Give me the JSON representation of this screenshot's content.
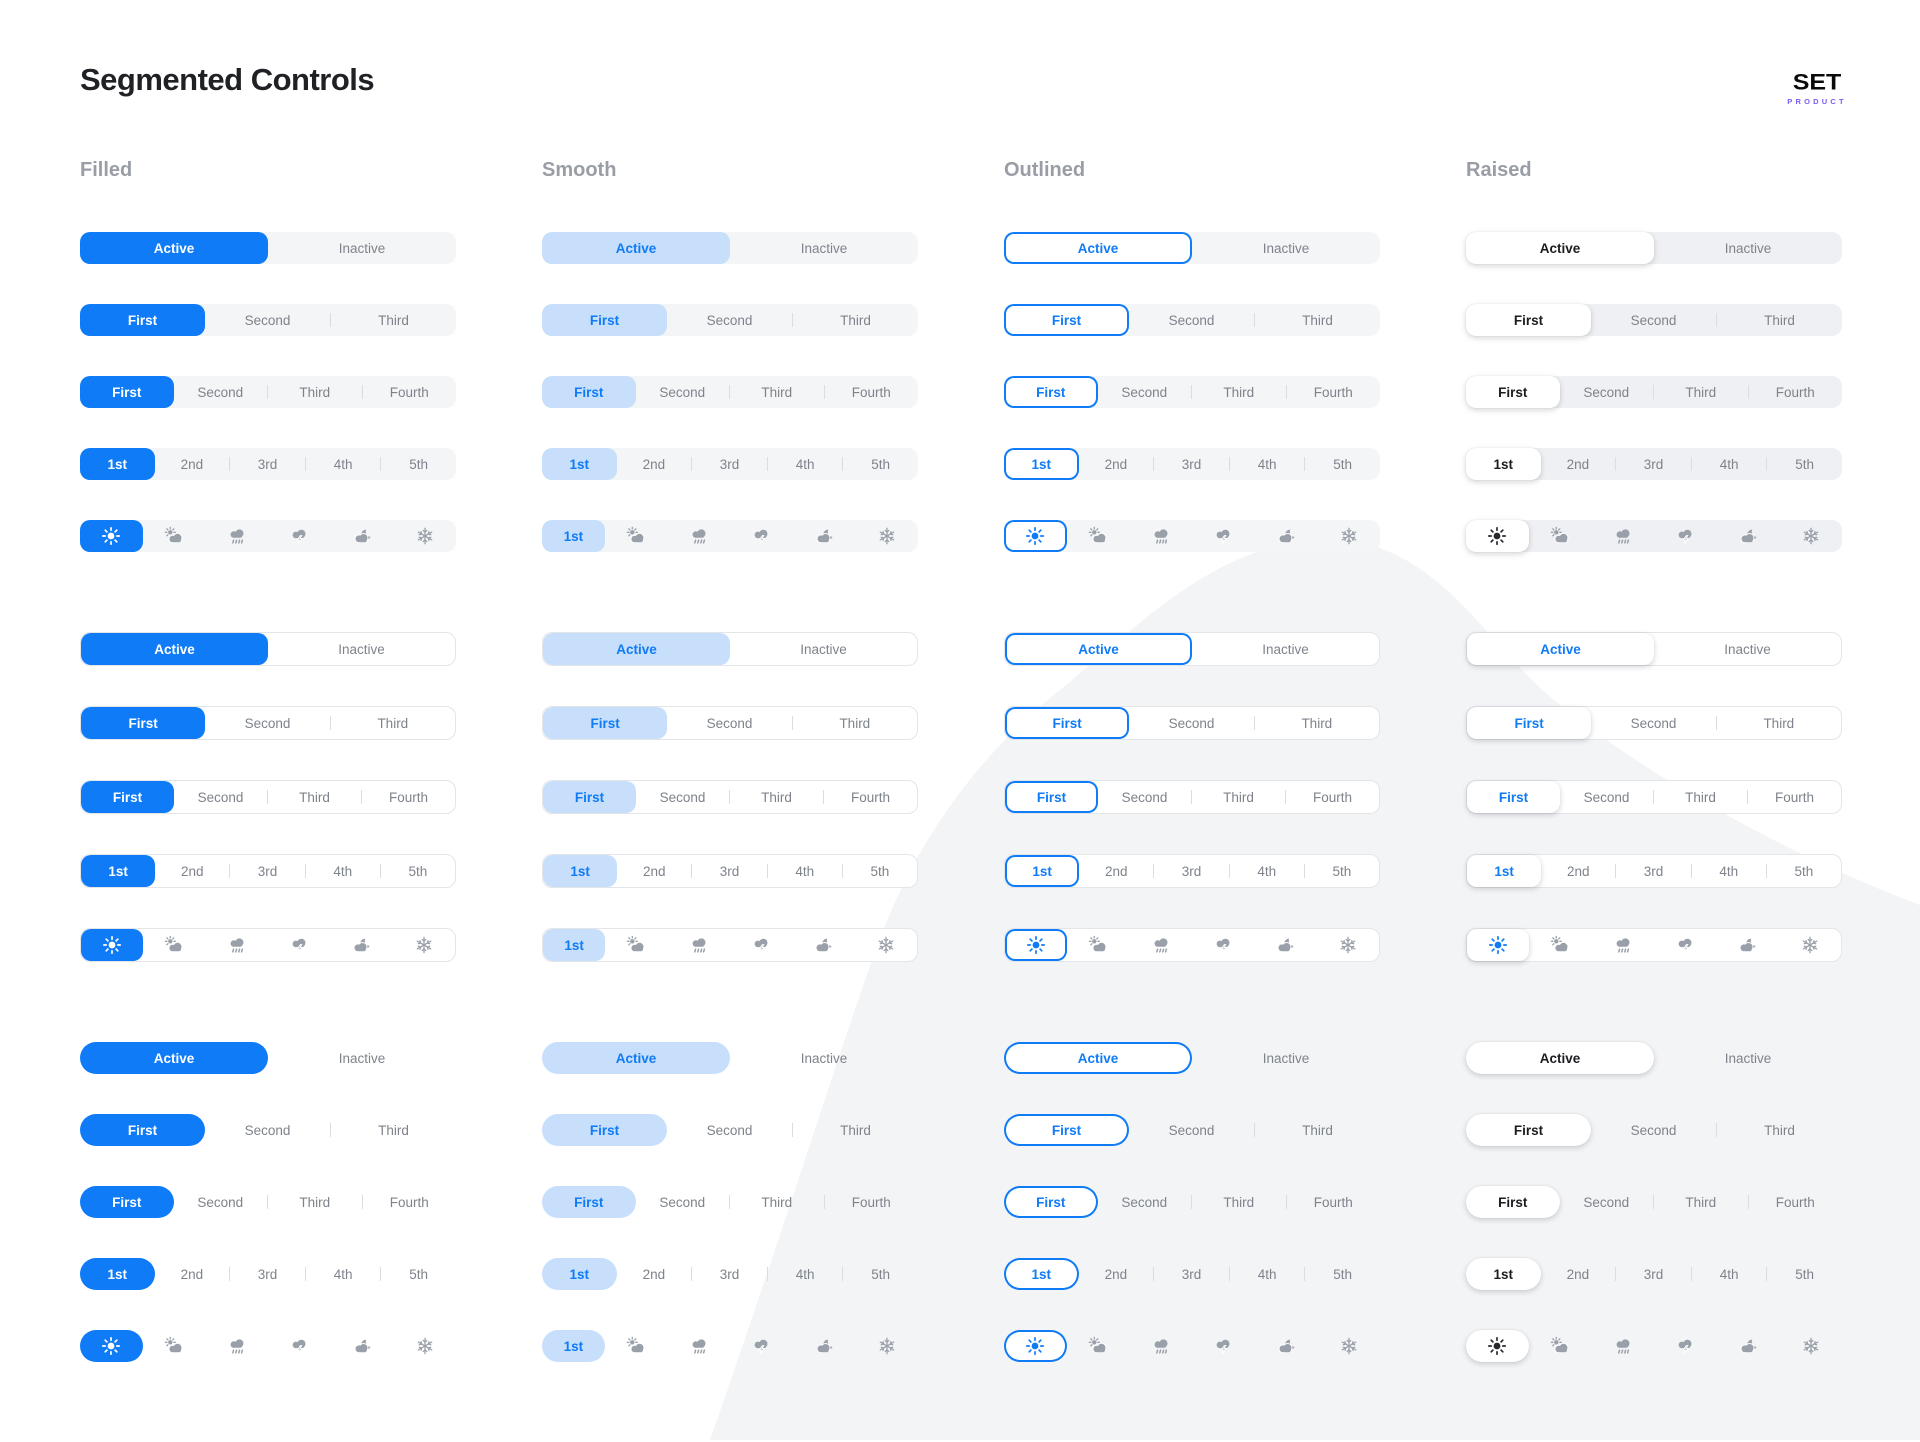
{
  "title": "Segmented Controls",
  "logo": {
    "name": "SET",
    "tagline": "PRODUCT"
  },
  "columns": [
    {
      "label": "Filled"
    },
    {
      "label": "Smooth"
    },
    {
      "label": "Outlined"
    },
    {
      "label": "Raised"
    }
  ],
  "groups": [
    {
      "container": "filled"
    },
    {
      "container": "outlined"
    },
    {
      "container": "pill"
    }
  ],
  "rows": [
    {
      "type": "text",
      "segments": [
        "Active",
        "Inactive"
      ],
      "active_index": 0
    },
    {
      "type": "text",
      "segments": [
        "First",
        "Second",
        "Third"
      ],
      "active_index": 0
    },
    {
      "type": "text",
      "segments": [
        "First",
        "Second",
        "Third",
        "Fourth"
      ],
      "active_index": 0
    },
    {
      "type": "text",
      "segments": [
        "1st",
        "2nd",
        "3rd",
        "4th",
        "5th"
      ],
      "active_index": 0
    },
    {
      "type": "icons",
      "segments": [
        "sun",
        "sun-behind-cloud",
        "rain-cloud",
        "thunder-cloud",
        "night-cloud",
        "snowflake"
      ],
      "active_index": 0,
      "smooth_active_label": "1st"
    }
  ],
  "colors": {
    "accent": "#0f7bf7",
    "accent_soft": "#c7dffb",
    "container": "#f4f5f7",
    "container_raised": "#eff0f3",
    "border": "#e3e5e9",
    "divider": "#dbdde2",
    "inactive_text": "#7e838b",
    "active_dark_text": "#1b1c1f",
    "icon_inactive": "#9aa0a9",
    "header_text": "#999da5",
    "title_text": "#1f2124",
    "logo_tagline": "#7c5bf5",
    "blob": "#f3f4f6"
  }
}
